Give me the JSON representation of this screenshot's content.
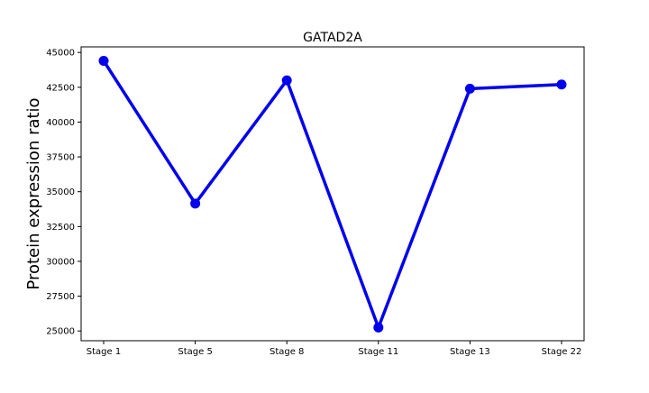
{
  "chart_data": {
    "type": "line",
    "title": "GATAD2A",
    "xlabel": "",
    "ylabel": "Protein expression ratio",
    "categories": [
      "Stage 1",
      "Stage 5",
      "Stage 8",
      "Stage 11",
      "Stage 13",
      "Stage 22"
    ],
    "series": [
      {
        "values": [
          44400,
          34150,
          43000,
          25250,
          42400,
          42700
        ]
      }
    ],
    "ylim": [
      24300,
      45400
    ],
    "yticks": [
      25000,
      27500,
      30000,
      32500,
      35000,
      37500,
      40000,
      42500,
      45000
    ],
    "ytick_labels": [
      "25000",
      "27500",
      "30000",
      "32500",
      "35000",
      "37500",
      "40000",
      "42500",
      "45000"
    ],
    "grid": false,
    "legend": "none",
    "colors": {
      "line": "#0000ee",
      "marker": "#0000ee",
      "axes": "#000000",
      "background": "#ffffff"
    }
  }
}
